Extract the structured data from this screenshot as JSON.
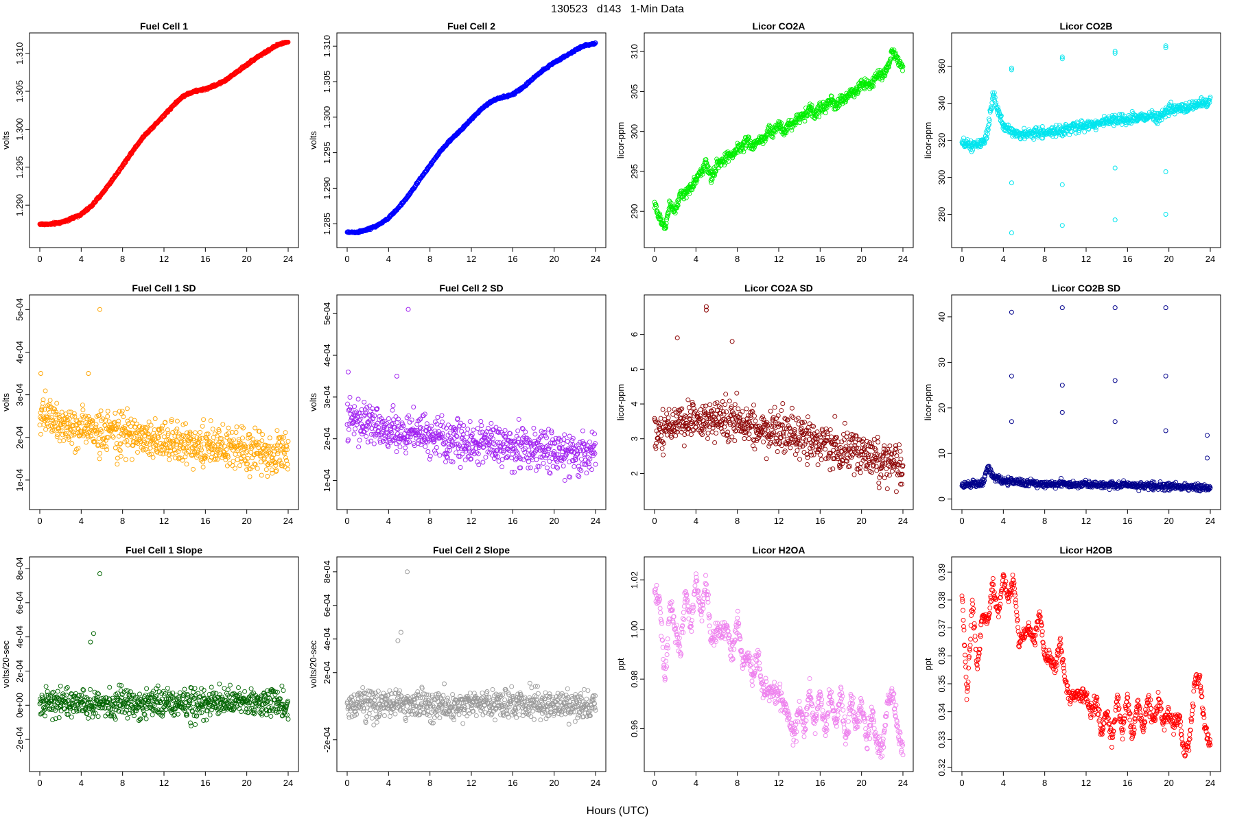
{
  "figure": {
    "suptitle": "130523   d143   1-Min Data",
    "xlabel": "Hours (UTC)"
  },
  "chart_data": [
    {
      "type": "scatter",
      "title": "Fuel Cell 1",
      "ylabel": "volts",
      "xlim": [
        0,
        24
      ],
      "ylim": [
        1.2855,
        1.3116
      ],
      "xticks": [
        0,
        4,
        8,
        12,
        16,
        20,
        24
      ],
      "yticks": [
        1.29,
        1.295,
        1.3,
        1.305,
        1.31
      ],
      "ytick_labels": [
        "1.290",
        "1.295",
        "1.300",
        "1.305",
        "1.310"
      ],
      "color": "#ff0000",
      "series": [
        {
          "x": [
            0,
            1,
            2,
            3,
            4,
            5,
            6,
            7,
            8,
            9,
            10,
            11,
            12,
            13,
            14,
            15,
            16,
            17,
            18,
            19,
            20,
            21,
            22,
            23,
            24
          ],
          "y": [
            1.2875,
            1.2875,
            1.2877,
            1.2882,
            1.2888,
            1.2899,
            1.2915,
            1.2933,
            1.2952,
            1.2972,
            1.299,
            1.3004,
            1.3018,
            1.3033,
            1.3045,
            1.305,
            1.3053,
            1.3058,
            1.3065,
            1.3075,
            1.3085,
            1.3095,
            1.3103,
            1.3111,
            1.3116
          ]
        }
      ],
      "noise": 0.00012,
      "outlier_rate": 0
    },
    {
      "type": "scatter",
      "title": "Fuel Cell 2",
      "ylabel": "volts",
      "xlim": [
        0,
        24
      ],
      "ylim": [
        1.2828,
        1.3107
      ],
      "xticks": [
        0,
        4,
        8,
        12,
        16,
        20,
        24
      ],
      "yticks": [
        1.285,
        1.29,
        1.295,
        1.3,
        1.305,
        1.31
      ],
      "ytick_labels": [
        "1.285",
        "1.290",
        "1.295",
        "1.300",
        "1.305",
        "1.310"
      ],
      "color": "#0000ff",
      "series": [
        {
          "x": [
            0,
            1,
            2,
            3,
            4,
            5,
            6,
            7,
            8,
            9,
            10,
            11,
            12,
            13,
            14,
            15,
            16,
            17,
            18,
            19,
            20,
            21,
            22,
            23,
            24
          ],
          "y": [
            1.2838,
            1.2838,
            1.2842,
            1.2848,
            1.2858,
            1.2873,
            1.2891,
            1.2912,
            1.2932,
            1.2952,
            1.2968,
            1.2982,
            1.2997,
            1.3012,
            1.3023,
            1.3028,
            1.3032,
            1.3042,
            1.3055,
            1.3067,
            1.3077,
            1.3085,
            1.3094,
            1.3101,
            1.3104
          ]
        }
      ],
      "noise": 0.00012,
      "outlier_rate": 0
    },
    {
      "type": "scatter",
      "title": "Licor CO2A",
      "ylabel": "licor-ppm",
      "xlim": [
        0,
        24
      ],
      "ylim": [
        286.5,
        311.3
      ],
      "xticks": [
        0,
        4,
        8,
        12,
        16,
        20,
        24
      ],
      "yticks": [
        290,
        295,
        300,
        305,
        310
      ],
      "ytick_labels": [
        "290",
        "295",
        "300",
        "305",
        "310"
      ],
      "color": "#00ee00",
      "series": [
        {
          "x": [
            0,
            0.5,
            1,
            1.5,
            2,
            2.5,
            3,
            3.5,
            4,
            4.5,
            5,
            5.5,
            6,
            6.5,
            7,
            7.5,
            8,
            8.5,
            9,
            9.5,
            10,
            10.5,
            11,
            11.5,
            12,
            12.5,
            13,
            13.5,
            14,
            14.5,
            15,
            15.5,
            16,
            16.5,
            17,
            17.5,
            18,
            18.5,
            19,
            19.5,
            20,
            20.5,
            21,
            21.5,
            22,
            22.5,
            23,
            23.5,
            24
          ],
          "y": [
            291,
            289,
            288,
            291,
            290,
            292,
            292,
            293,
            294,
            295,
            296,
            294,
            296,
            296,
            297,
            297,
            298,
            298,
            299,
            298,
            299,
            299,
            300,
            300,
            301,
            300,
            301,
            301,
            302,
            302,
            303,
            302,
            303,
            303,
            304,
            303,
            304,
            304,
            305,
            305,
            306,
            306,
            306,
            307,
            307,
            308,
            310,
            309,
            308
          ]
        }
      ],
      "noise": 0.6,
      "outlier_rate": 0
    },
    {
      "type": "scatter",
      "title": "Licor CO2B",
      "ylabel": "licor-ppm",
      "xlim": [
        0,
        24
      ],
      "ylim": [
        266.5,
        373.5
      ],
      "xticks": [
        0,
        4,
        8,
        12,
        16,
        20,
        24
      ],
      "yticks": [
        280,
        300,
        320,
        340,
        360
      ],
      "ytick_labels": [
        "280",
        "300",
        "320",
        "340",
        "360"
      ],
      "color": "#00e5ee",
      "series": [
        {
          "x": [
            0,
            1,
            2,
            2.5,
            3,
            3.5,
            4,
            5,
            6,
            7,
            8,
            9,
            10,
            11,
            12,
            13,
            14,
            15,
            16,
            17,
            18,
            19,
            20,
            21,
            22,
            23,
            24
          ],
          "y": [
            318,
            317,
            318,
            325,
            345,
            335,
            328,
            324,
            323,
            324,
            324,
            325,
            326,
            327,
            328,
            329,
            330,
            331,
            331,
            332,
            333,
            333,
            336,
            337,
            338,
            340,
            341
          ]
        },
        {
          "x": [
            4.8,
            4.8,
            4.8,
            4.8,
            9.7,
            9.7,
            9.7,
            9.7,
            14.8,
            14.8,
            14.8,
            14.8,
            19.7,
            19.7,
            19.7,
            19.7
          ],
          "y": [
            359,
            358,
            270,
            297,
            365,
            364,
            274,
            296,
            368,
            367,
            277,
            305,
            371,
            370,
            280,
            303
          ]
        }
      ],
      "noise": 2.5,
      "outlier_rate": 0
    },
    {
      "type": "scatter",
      "title": "Fuel Cell 1 SD",
      "ylabel": "volts",
      "xlim": [
        0,
        24
      ],
      "ylim": [
        5e-05,
        0.000515
      ],
      "xticks": [
        0,
        4,
        8,
        12,
        16,
        20,
        24
      ],
      "yticks": [
        0.0001,
        0.0002,
        0.0003,
        0.0004,
        0.0005
      ],
      "ytick_labels": [
        "1e-04",
        "2e-04",
        "3e-04",
        "4e-04",
        "5e-04"
      ],
      "color": "#ffa500",
      "series": [
        {
          "x": [
            0,
            4,
            8,
            12,
            16,
            20,
            24
          ],
          "y": [
            0.00025,
            0.00022,
            0.00021,
            0.00019,
            0.00018,
            0.00017,
            0.00016
          ]
        },
        {
          "x": [
            5.8,
            4.7,
            0.1
          ],
          "y": [
            0.0005,
            0.00035,
            0.00035
          ]
        }
      ],
      "noise": 4.5e-05,
      "outlier_rate": 0
    },
    {
      "type": "scatter",
      "title": "Fuel Cell 2 SD",
      "ylabel": "volts",
      "xlim": [
        0,
        24
      ],
      "ylim": [
        5e-05,
        0.000525
      ],
      "xticks": [
        0,
        4,
        8,
        12,
        16,
        20,
        24
      ],
      "yticks": [
        0.0001,
        0.0002,
        0.0003,
        0.0004,
        0.0005
      ],
      "ytick_labels": [
        "1e-04",
        "2e-04",
        "3e-04",
        "4e-04",
        "5e-04"
      ],
      "color": "#a020f0",
      "series": [
        {
          "x": [
            0,
            4,
            8,
            12,
            16,
            20,
            24
          ],
          "y": [
            0.00025,
            0.00022,
            0.00021,
            0.00019,
            0.00018,
            0.00017,
            0.00016
          ]
        },
        {
          "x": [
            5.9,
            0.1,
            4.8
          ],
          "y": [
            0.00051,
            0.00036,
            0.00035
          ]
        }
      ],
      "noise": 4.5e-05,
      "outlier_rate": 0
    },
    {
      "type": "scatter",
      "title": "Licor CO2A SD",
      "ylabel": "licor-ppm",
      "xlim": [
        0,
        24
      ],
      "ylim": [
        1.2,
        6.9
      ],
      "xticks": [
        0,
        4,
        8,
        12,
        16,
        20,
        24
      ],
      "yticks": [
        2,
        3,
        4,
        5,
        6
      ],
      "ytick_labels": [
        "2",
        "3",
        "4",
        "5",
        "6"
      ],
      "color": "#8b0000",
      "series": [
        {
          "x": [
            0,
            4,
            8,
            12,
            16,
            20,
            24
          ],
          "y": [
            3.2,
            3.6,
            3.4,
            3.2,
            2.9,
            2.6,
            2.1
          ]
        },
        {
          "x": [
            5,
            5,
            2.2,
            7.5
          ],
          "y": [
            6.8,
            6.7,
            5.9,
            5.8
          ]
        }
      ],
      "noise": 0.55,
      "outlier_rate": 0
    },
    {
      "type": "scatter",
      "title": "Licor CO2B SD",
      "ylabel": "licor-ppm",
      "xlim": [
        0,
        24
      ],
      "ylim": [
        -0.5,
        43
      ],
      "xticks": [
        0,
        4,
        8,
        12,
        16,
        20,
        24
      ],
      "yticks": [
        0,
        10,
        20,
        30,
        40
      ],
      "ytick_labels": [
        "0",
        "10",
        "20",
        "30",
        "40"
      ],
      "color": "#00008b",
      "series": [
        {
          "x": [
            0,
            2,
            2.5,
            3,
            4,
            8,
            12,
            16,
            20,
            24
          ],
          "y": [
            3,
            3.5,
            7,
            5,
            4,
            3.3,
            3.2,
            3,
            2.8,
            2.5
          ]
        },
        {
          "x": [
            4.8,
            4.8,
            4.8,
            9.7,
            9.7,
            9.7,
            14.8,
            14.8,
            14.8,
            19.7,
            19.7,
            19.7,
            23.7,
            23.7
          ],
          "y": [
            41,
            27,
            17,
            42,
            25,
            19,
            42,
            26,
            17,
            42,
            27,
            15,
            14,
            9
          ]
        }
      ],
      "noise": 0.7,
      "outlier_rate": 0
    },
    {
      "type": "scatter",
      "title": "Fuel Cell 1 Slope",
      "ylabel": "volts/20-sec",
      "xlim": [
        0,
        24
      ],
      "ylim": [
        -0.00034,
        0.00082
      ],
      "xticks": [
        0,
        4,
        8,
        12,
        16,
        20,
        24
      ],
      "yticks": [
        -0.0002,
        0,
        0.0002,
        0.0004,
        0.0006,
        0.0008
      ],
      "ytick_labels": [
        "-2e-04",
        "0e+00",
        "2e-04",
        "4e-04",
        "6e-04",
        "8e-04"
      ],
      "color": "#006400",
      "series": [
        {
          "x": [
            0,
            4,
            8,
            12,
            16,
            20,
            24
          ],
          "y": [
            1e-05,
            1e-05,
            1e-05,
            1e-05,
            1e-05,
            1e-05,
            1e-05
          ]
        },
        {
          "x": [
            5.8,
            5.2,
            4.9
          ],
          "y": [
            0.00077,
            0.00042,
            0.00037
          ]
        }
      ],
      "noise": 8e-05,
      "outlier_rate": 0
    },
    {
      "type": "scatter",
      "title": "Fuel Cell 2 Slope",
      "ylabel": "volts/20-sec",
      "xlim": [
        0,
        24
      ],
      "ylim": [
        -0.00034,
        0.00084
      ],
      "xticks": [
        0,
        4,
        8,
        12,
        16,
        20,
        24
      ],
      "yticks": [
        -0.0002,
        0.0002,
        0.0004,
        0.0006,
        0.0008
      ],
      "ytick_labels": [
        "-2e-04",
        "2e-04",
        "4e-04",
        "6e-04",
        "8e-04"
      ],
      "color": "#999999",
      "series": [
        {
          "x": [
            0,
            4,
            8,
            12,
            16,
            20,
            24
          ],
          "y": [
            1e-05,
            1e-05,
            1e-05,
            1e-05,
            1e-05,
            1e-05,
            1e-05
          ]
        },
        {
          "x": [
            5.8,
            5.2,
            4.9
          ],
          "y": [
            0.0008,
            0.00044,
            0.00039
          ]
        }
      ],
      "noise": 8e-05,
      "outlier_rate": 0
    },
    {
      "type": "scatter",
      "title": "Licor H2OA",
      "ylabel": "ppt",
      "xlim": [
        0,
        24
      ],
      "ylim": [
        0.946,
        1.026
      ],
      "xticks": [
        0,
        4,
        8,
        12,
        16,
        20,
        24
      ],
      "yticks": [
        0.96,
        0.98,
        1.0,
        1.02
      ],
      "ytick_labels": [
        "0.96",
        "0.98",
        "1.00",
        "1.02"
      ],
      "color": "#ee82ee",
      "series": [
        {
          "x": [
            0,
            0.5,
            1,
            1.5,
            2,
            2.5,
            3,
            3.5,
            4,
            4.5,
            5,
            5.5,
            6,
            6.5,
            7,
            7.5,
            8,
            8.5,
            9,
            9.5,
            10,
            10.5,
            11,
            11.5,
            12,
            12.5,
            13,
            13.5,
            14,
            14.5,
            15,
            15.5,
            16,
            16.5,
            17,
            17.5,
            18,
            18.5,
            19,
            19.5,
            20,
            20.5,
            21,
            21.5,
            22,
            22.5,
            23,
            23.5,
            24
          ],
          "y": [
            1.015,
            1.01,
            0.98,
            1.01,
            1.0,
            0.99,
            1.015,
            1.0,
            1.02,
            1.005,
            1.02,
            0.995,
            1.0,
            1.0,
            1.0,
            0.99,
            1.005,
            0.985,
            0.99,
            0.98,
            0.99,
            0.975,
            0.975,
            0.975,
            0.975,
            0.97,
            0.965,
            0.955,
            0.97,
            0.96,
            0.975,
            0.96,
            0.975,
            0.958,
            0.975,
            0.96,
            0.975,
            0.955,
            0.972,
            0.96,
            0.97,
            0.955,
            0.965,
            0.955,
            0.952,
            0.97,
            0.975,
            0.96,
            0.952
          ]
        }
      ],
      "noise": 0.004,
      "outlier_rate": 0
    },
    {
      "type": "scatter",
      "title": "Licor H2OB",
      "ylabel": "ppt",
      "xlim": [
        0,
        24
      ],
      "ylim": [
        0.3215,
        0.3925
      ],
      "xticks": [
        0,
        4,
        8,
        12,
        16,
        20,
        24
      ],
      "yticks": [
        0.32,
        0.33,
        0.34,
        0.35,
        0.36,
        0.37,
        0.38,
        0.39
      ],
      "ytick_labels": [
        "0.32",
        "0.33",
        "0.34",
        "0.35",
        "0.36",
        "0.37",
        "0.38",
        "0.39"
      ],
      "color": "#ff0000",
      "series": [
        {
          "x": [
            0,
            0.5,
            1,
            1.5,
            2,
            2.5,
            3,
            3.5,
            4,
            4.5,
            5,
            5.5,
            6,
            6.5,
            7,
            7.5,
            8,
            8.5,
            9,
            9.5,
            10,
            10.5,
            11,
            11.5,
            12,
            12.5,
            13,
            13.5,
            14,
            14.5,
            15,
            15.5,
            16,
            16.5,
            17,
            17.5,
            18,
            18.5,
            19,
            19.5,
            20,
            20.5,
            21,
            21.5,
            22,
            22.5,
            23,
            23.5,
            24
          ],
          "y": [
            0.383,
            0.345,
            0.38,
            0.355,
            0.375,
            0.372,
            0.385,
            0.375,
            0.388,
            0.38,
            0.388,
            0.365,
            0.368,
            0.37,
            0.365,
            0.375,
            0.36,
            0.36,
            0.355,
            0.365,
            0.35,
            0.345,
            0.347,
            0.345,
            0.345,
            0.34,
            0.345,
            0.332,
            0.34,
            0.33,
            0.345,
            0.333,
            0.345,
            0.33,
            0.343,
            0.333,
            0.345,
            0.335,
            0.345,
            0.335,
            0.34,
            0.335,
            0.338,
            0.325,
            0.33,
            0.35,
            0.352,
            0.333,
            0.328
          ]
        }
      ],
      "noise": 0.0025,
      "outlier_rate": 0
    }
  ]
}
